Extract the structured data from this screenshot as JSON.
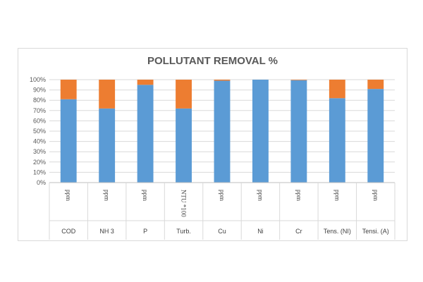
{
  "chart_data": {
    "type": "bar",
    "stacked": true,
    "title": "POLLUTANT REMOVAL %",
    "categories": [
      "COD",
      "NH 3",
      "P",
      "Turb.",
      "Cu",
      "Ni",
      "Cr",
      "Tens. (NI)",
      "Tensi. (A)"
    ],
    "units": [
      "ppm",
      "ppm",
      "ppm",
      "NTU *100",
      "ppm",
      "ppm",
      "ppm",
      "ppm",
      "ppm"
    ],
    "series": [
      {
        "values": [
          81,
          72,
          95,
          72,
          99,
          100,
          99.5,
          82,
          91
        ],
        "color": "#5b9bd5"
      },
      {
        "values": [
          19,
          28,
          5,
          28,
          1,
          0,
          0.5,
          18,
          9
        ],
        "color": "#ed7d31"
      }
    ],
    "y_ticks": [
      "0%",
      "10%",
      "20%",
      "30%",
      "40%",
      "50%",
      "60%",
      "70%",
      "80%",
      "90%",
      "100%"
    ],
    "ylim": [
      0,
      100
    ],
    "grid": true,
    "legend": "none"
  }
}
